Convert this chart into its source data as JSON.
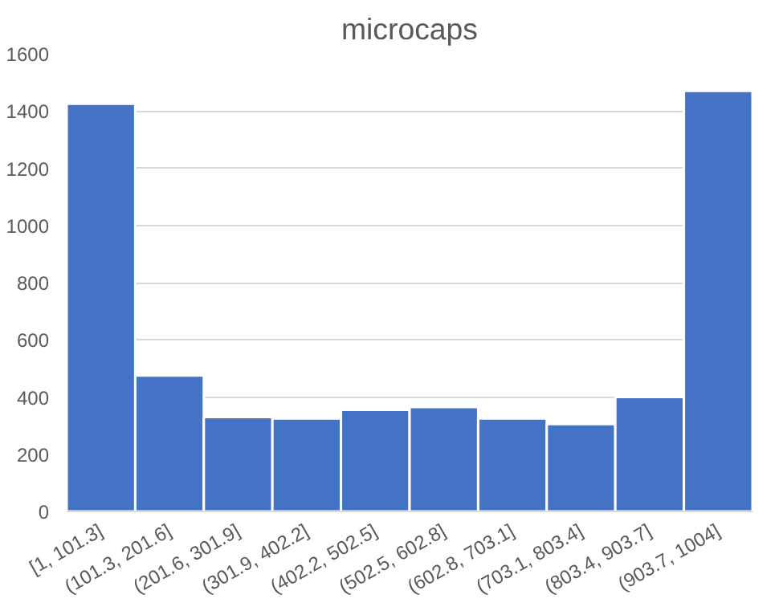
{
  "chart_data": {
    "type": "bar",
    "title": "microcaps",
    "categories": [
      "[1, 101.3]",
      "(101.3, 201.6]",
      "(201.6, 301.9]",
      "(301.9, 402.2]",
      "(402.2, 502.5]",
      "(502.5, 602.8]",
      "(602.8, 703.1]",
      "(703.1, 803.4]",
      "(803.4, 903.7]",
      "(903.7, 1004]"
    ],
    "values": [
      1425,
      475,
      330,
      325,
      355,
      365,
      325,
      305,
      400,
      1470
    ],
    "color": "#4472c4",
    "ylim": [
      0,
      1600
    ],
    "yticks": [
      0,
      200,
      400,
      600,
      800,
      1000,
      1200,
      1400,
      1600
    ],
    "grid": "y"
  }
}
